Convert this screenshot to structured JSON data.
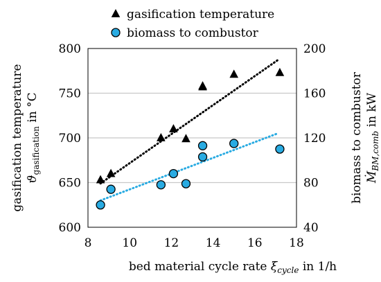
{
  "chart_data": {
    "type": "scatter",
    "title": "",
    "xlabel": {
      "prefix": "bed material cycle rate ",
      "symbol": "ξ",
      "subscript": "cycle",
      "suffix": " in 1/h"
    },
    "ylabel_left": {
      "line1": "gasification temperature",
      "symbol": "ϑ",
      "subscript": "gasification",
      "suffix": " in °C"
    },
    "ylabel_right": {
      "line1": "biomass to combustor",
      "symbol": "Ṁ",
      "subscript": "BM,comb",
      "suffix": " in kW"
    },
    "xlim": [
      8,
      18
    ],
    "ylim_left": [
      600,
      800
    ],
    "ylim_right": [
      40,
      200
    ],
    "xticks": [
      8,
      10,
      12,
      14,
      16,
      18
    ],
    "yticks_left": [
      600,
      650,
      700,
      750,
      800
    ],
    "yticks_right": [
      40,
      80,
      120,
      160,
      200
    ],
    "grid": "horizontal",
    "legend_position": "top",
    "series": [
      {
        "name": "gasification temperature",
        "axis": "left",
        "marker": "triangle",
        "color": "#000000",
        "x": [
          8.6,
          9.1,
          11.5,
          12.1,
          12.7,
          13.5,
          13.5,
          15.0,
          17.2
        ],
        "y": [
          653,
          660,
          700,
          710,
          699,
          758,
          757,
          771,
          773
        ],
        "trend": {
          "x": [
            8.6,
            17.1
          ],
          "y": [
            649,
            787
          ],
          "color": "#000000"
        }
      },
      {
        "name": "biomass to combustor",
        "axis": "right",
        "marker": "circle",
        "color": "#29ABE2",
        "x": [
          8.6,
          9.1,
          11.5,
          12.1,
          12.7,
          13.5,
          13.5,
          15.0,
          17.2
        ],
        "y": [
          60,
          74,
          78,
          88,
          79,
          103,
          113,
          115,
          110
        ],
        "trend": {
          "x": [
            8.6,
            17.1
          ],
          "y": [
            64,
            124
          ],
          "color": "#29ABE2"
        }
      }
    ]
  }
}
